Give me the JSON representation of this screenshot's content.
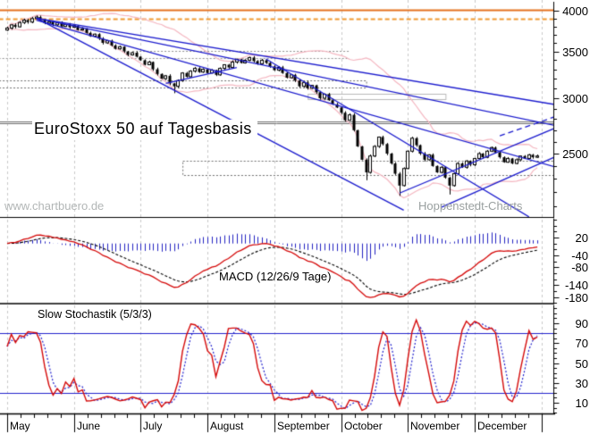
{
  "header": {
    "title": "EuroStoxx 50 auf Tagesbasis"
  },
  "watermarks": {
    "left": "www.chartbuero.de",
    "right": "Hoppenstedt-Charts"
  },
  "panels": {
    "price": {
      "axis_labels": [
        4000,
        3500,
        3000,
        2500
      ],
      "scale": "log"
    },
    "macd": {
      "label": "MACD (12/26/9 Tage)",
      "axis_labels": [
        20,
        -40,
        -80,
        -140,
        -180
      ]
    },
    "stochastic": {
      "label": "Slow Stochastik (5/3/3)",
      "axis_labels": [
        90,
        70,
        50,
        30,
        10
      ],
      "upper_threshold": 80,
      "lower_threshold": 20
    }
  },
  "x_axis": {
    "months": [
      "May",
      "June",
      "July",
      "August",
      "September",
      "October",
      "November",
      "December"
    ],
    "days_per_month": 16
  },
  "colors": {
    "orange_solid": "#e4701e",
    "orange_dashed": "#f09a30",
    "trend_blue": "#1a1acd",
    "band_pink": "#f4b6c0",
    "macd_red": "#d40808",
    "signal_black": "#000000",
    "hist_blue": "#2222c0",
    "stoch_k_red": "#d40808",
    "stoch_d_blue": "#2020cc",
    "threshold_blue": "#2020cc",
    "grid_gray": "#c8c8c8",
    "zone_dark": "#6e6e6e",
    "zone_mid": "#909090",
    "zone_light": "#b8b8b8",
    "axis_black": "#000000"
  },
  "chart_data": {
    "type": "candlestick",
    "title": "EuroStoxx 50 auf Tagesbasis",
    "timeframe": "daily",
    "price_range": [
      2030,
      4100
    ],
    "closes": [
      3780,
      3820,
      3795,
      3850,
      3880,
      3855,
      3900,
      3920,
      3875,
      3840,
      3860,
      3820,
      3845,
      3800,
      3825,
      3790,
      3810,
      3755,
      3770,
      3720,
      3680,
      3705,
      3650,
      3600,
      3625,
      3570,
      3530,
      3555,
      3500,
      3460,
      3485,
      3440,
      3400,
      3350,
      3380,
      3300,
      3250,
      3200,
      3230,
      3150,
      3120,
      3180,
      3260,
      3220,
      3280,
      3310,
      3270,
      3300,
      3260,
      3290,
      3240,
      3310,
      3350,
      3320,
      3380,
      3410,
      3370,
      3400,
      3430,
      3390,
      3360,
      3400,
      3370,
      3330,
      3290,
      3320,
      3260,
      3210,
      3240,
      3180,
      3120,
      3160,
      3100,
      3130,
      3060,
      3000,
      3040,
      2980,
      2940,
      2910,
      2860,
      2790,
      2840,
      2700,
      2560,
      2450,
      2350,
      2480,
      2560,
      2640,
      2580,
      2500,
      2420,
      2340,
      2250,
      2380,
      2520,
      2630,
      2570,
      2500,
      2450,
      2490,
      2400,
      2350,
      2390,
      2310,
      2250,
      2340,
      2420,
      2390,
      2440,
      2410,
      2460,
      2500,
      2470,
      2520,
      2550,
      2510,
      2470,
      2430,
      2460,
      2420,
      2450,
      2480,
      2460,
      2490,
      2470,
      2480
    ],
    "spike_lows": {
      "40": 3050,
      "86": 2290,
      "94": 2175,
      "106": 2185
    },
    "indicators": {
      "bollinger": {
        "period": 20,
        "mult": 2
      },
      "macd": {
        "fast": 12,
        "slow": 26,
        "signal": 9
      },
      "stochastic": {
        "k": 5,
        "slow": 3,
        "d": 3
      }
    },
    "trendlines": [
      {
        "d1": 7,
        "p1": 3905,
        "d2": 131,
        "p2": 2940,
        "dash": false
      },
      {
        "d1": 7,
        "p1": 3905,
        "d2": 131,
        "p2": 2745,
        "dash": false
      },
      {
        "d1": 7,
        "p1": 3880,
        "d2": 131,
        "p2": 2395,
        "dash": false
      },
      {
        "d1": 7,
        "p1": 3905,
        "d2": 95,
        "p2": 2075,
        "dash": false
      },
      {
        "d1": 62,
        "p1": 3415,
        "d2": 125,
        "p2": 2030,
        "dash": false
      },
      {
        "d1": 38,
        "p1": 3150,
        "d2": 55,
        "p2": 3320,
        "dash": false
      },
      {
        "d1": 94,
        "p1": 2195,
        "d2": 131,
        "p2": 2715,
        "dash": false
      },
      {
        "d1": 104,
        "p1": 2095,
        "d2": 131,
        "p2": 2470,
        "dash": false
      },
      {
        "d1": 118,
        "p1": 2650,
        "d2": 131,
        "p2": 2820,
        "dash": true
      }
    ],
    "levels": [
      {
        "price": 4015,
        "d1": -2,
        "d2": 132,
        "style": "solid",
        "color": "orange_solid",
        "width": 2
      },
      {
        "price": 3895,
        "d1": -2,
        "d2": 132,
        "style": "dashed",
        "color": "orange_dashed",
        "width": 2
      },
      {
        "price": 3505,
        "d1": 30,
        "d2": 82,
        "style": "dotted",
        "color": "zone_mid",
        "width": 1
      },
      {
        "price": 3420,
        "d1": -2,
        "d2": 82,
        "style": "dotted",
        "color": "zone_mid",
        "width": 1
      },
      {
        "price": 2780,
        "d1": -2,
        "d2": 132,
        "style": "solid",
        "color": "zone_dark",
        "width": 1
      },
      {
        "price": 2762,
        "d1": -2,
        "d2": 132,
        "style": "solid",
        "color": "zone_dark",
        "width": 1
      }
    ],
    "zones": [
      {
        "p1": 3110,
        "p2": 3180,
        "d1": -2,
        "d2": 86,
        "style": "dotted",
        "color": "zone_dark"
      },
      {
        "p1": 2990,
        "p2": 3045,
        "d1": 72,
        "d2": 105,
        "style": "solid",
        "color": "zone_light"
      },
      {
        "p1": 2330,
        "p2": 2440,
        "d1": 42,
        "d2": 131,
        "style": "dotted",
        "color": "zone_dark"
      }
    ]
  }
}
